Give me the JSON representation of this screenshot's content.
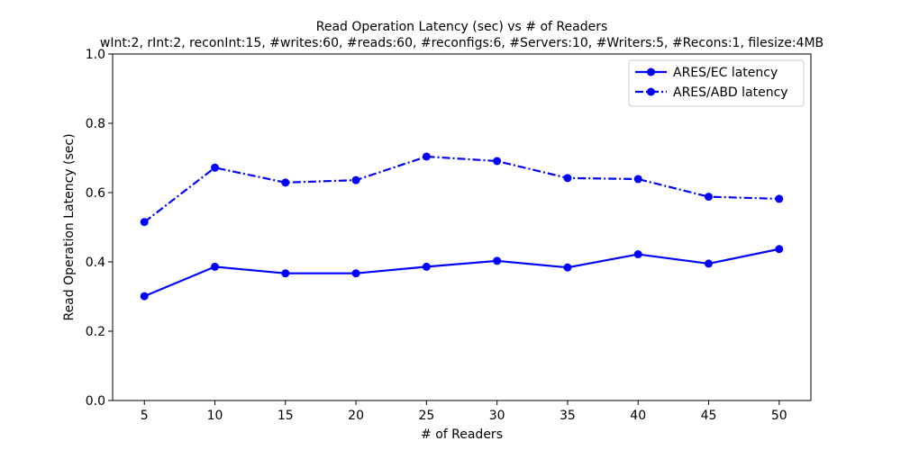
{
  "chart_data": {
    "type": "line",
    "title": "Read Operation Latency (sec) vs # of Readers",
    "subtitle": "wInt:2, rInt:2, reconInt:15, #writes:60, #reads:60, #reconfigs:6, #Servers:10, #Writers:5, #Recons:1, filesize:4MB",
    "xlabel": "# of Readers",
    "ylabel": "Read Operation Latency (sec)",
    "x": [
      5,
      10,
      15,
      20,
      25,
      30,
      35,
      40,
      45,
      50
    ],
    "x_tick_labels": [
      "5",
      "10",
      "15",
      "20",
      "25",
      "30",
      "35",
      "40",
      "45",
      "50"
    ],
    "y_ticks": [
      0.0,
      0.2,
      0.4,
      0.6,
      0.8,
      1.0
    ],
    "y_tick_labels": [
      "0.0",
      "0.2",
      "0.4",
      "0.6",
      "0.8",
      "1.0"
    ],
    "xlim": [
      2.75,
      52.25
    ],
    "ylim": [
      0.0,
      1.0
    ],
    "grid": false,
    "legend_position": "top-right",
    "series": [
      {
        "name": "ARES/EC latency",
        "style": "solid",
        "marker": "circle",
        "color": "#0000ff",
        "values": [
          0.301,
          0.386,
          0.367,
          0.367,
          0.386,
          0.403,
          0.384,
          0.422,
          0.395,
          0.437
        ]
      },
      {
        "name": "ARES/ABD latency",
        "style": "dashdot",
        "marker": "circle",
        "color": "#0000ff",
        "values": [
          0.515,
          0.672,
          0.629,
          0.636,
          0.704,
          0.691,
          0.642,
          0.639,
          0.588,
          0.582
        ]
      }
    ]
  }
}
